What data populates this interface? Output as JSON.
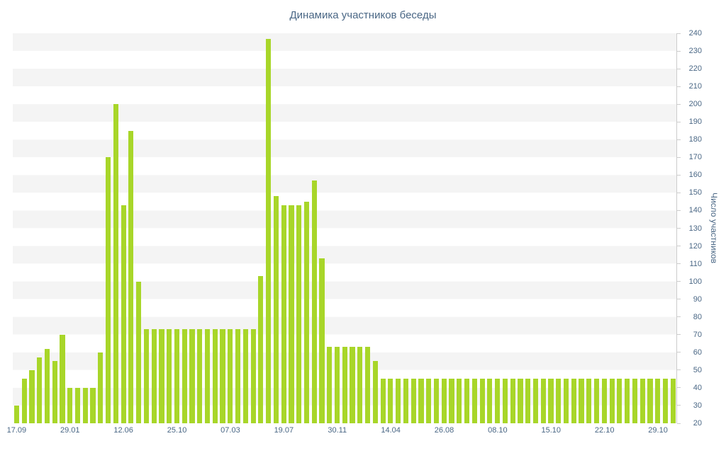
{
  "title": "Динамика участников беседы",
  "y_axis": {
    "title": "Число участников",
    "min": 20,
    "max": 240,
    "tick_interval": 10
  },
  "x_axis": {
    "labels": [
      "17.09",
      "29.01",
      "12.06",
      "25.10",
      "07.03",
      "19.07",
      "30.11",
      "14.04",
      "26.08",
      "08.10",
      "15.10",
      "22.10",
      "29.10"
    ],
    "label_every_n_bars": 7
  },
  "colors": {
    "bar": "#a8d629",
    "text": "#4a6785",
    "band": "#f4f4f4",
    "axis_line": "#cccccc"
  },
  "chart_data": {
    "type": "bar",
    "title": "Динамика участников беседы",
    "xlabel": "",
    "ylabel": "Число участников",
    "ylim": [
      20,
      240
    ],
    "yticks": [
      20,
      30,
      40,
      50,
      60,
      70,
      80,
      90,
      100,
      110,
      120,
      130,
      140,
      150,
      160,
      170,
      180,
      190,
      200,
      210,
      220,
      230,
      240
    ],
    "grid_bands": true,
    "legend_position": "none",
    "x_tick_labels": [
      "17.09",
      "29.01",
      "12.06",
      "25.10",
      "07.03",
      "19.07",
      "30.11",
      "14.04",
      "26.08",
      "08.10",
      "15.10",
      "22.10",
      "29.10"
    ],
    "x_tick_positions": [
      0,
      7,
      14,
      21,
      28,
      35,
      42,
      49,
      56,
      63,
      70,
      77,
      84
    ],
    "values": [
      30,
      45,
      50,
      57,
      62,
      55,
      70,
      40,
      40,
      40,
      40,
      60,
      170,
      200,
      143,
      185,
      100,
      73,
      73,
      73,
      73,
      73,
      73,
      73,
      73,
      73,
      73,
      73,
      73,
      73,
      73,
      73,
      103,
      237,
      148,
      143,
      143,
      143,
      145,
      157,
      113,
      63,
      63,
      63,
      63,
      63,
      63,
      55,
      45,
      45,
      45,
      45,
      45,
      45,
      45,
      45,
      45,
      45,
      45,
      45,
      45,
      45,
      45,
      45,
      45,
      45,
      45,
      45,
      45,
      45,
      45,
      45,
      45,
      45,
      45,
      45,
      45,
      45,
      45,
      45,
      45,
      45,
      45,
      45,
      45,
      45,
      45
    ]
  }
}
